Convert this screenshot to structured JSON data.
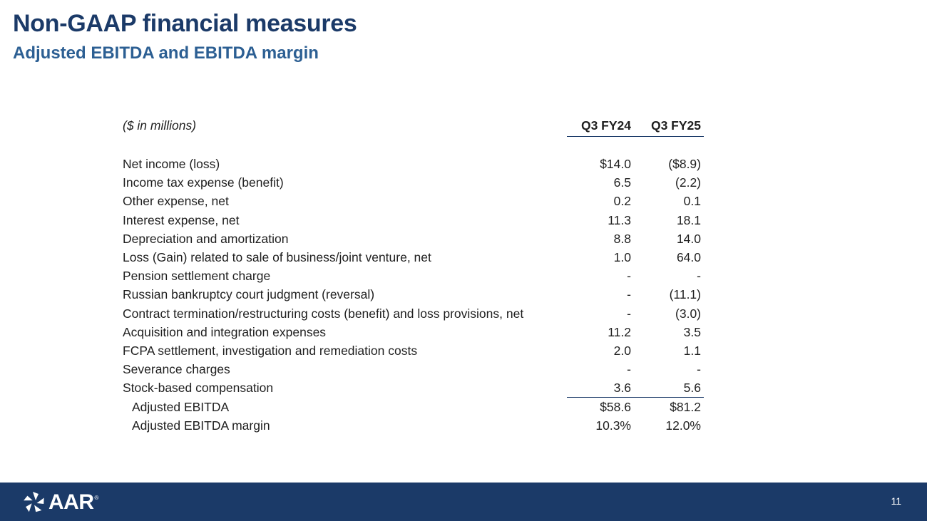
{
  "slide": {
    "title": "Non-GAAP financial measures",
    "subtitle": "Adjusted EBITDA and EBITDA margin",
    "page_number": "11"
  },
  "table": {
    "header": {
      "label": "($ in millions)",
      "col1": "Q3 FY24",
      "col2": "Q3 FY25"
    },
    "rows": [
      {
        "label": "Net income (loss)",
        "q3fy24": "$14.0",
        "q3fy25": "($8.9)"
      },
      {
        "label": "Income tax expense (benefit)",
        "q3fy24": "6.5",
        "q3fy25": "(2.2)"
      },
      {
        "label": "Other expense, net",
        "q3fy24": "0.2",
        "q3fy25": "0.1"
      },
      {
        "label": "Interest expense, net",
        "q3fy24": "11.3",
        "q3fy25": "18.1"
      },
      {
        "label": "Depreciation and amortization",
        "q3fy24": "8.8",
        "q3fy25": "14.0"
      },
      {
        "label": "Loss (Gain) related to sale of business/joint venture, net",
        "q3fy24": "1.0",
        "q3fy25": "64.0"
      },
      {
        "label": "Pension settlement charge",
        "q3fy24": "-",
        "q3fy25": "-"
      },
      {
        "label": "Russian bankruptcy court judgment (reversal)",
        "q3fy24": "-",
        "q3fy25": "(11.1)"
      },
      {
        "label": "Contract termination/restructuring costs (benefit) and loss provisions, net",
        "q3fy24": "-",
        "q3fy25": "(3.0)"
      },
      {
        "label": "Acquisition and integration expenses",
        "q3fy24": "11.2",
        "q3fy25": "3.5"
      },
      {
        "label": "FCPA settlement, investigation and remediation costs",
        "q3fy24": "2.0",
        "q3fy25": "1.1"
      },
      {
        "label": "Severance charges",
        "q3fy24": "-",
        "q3fy25": "-"
      },
      {
        "label": "Stock-based compensation",
        "q3fy24": "3.6",
        "q3fy25": "5.6"
      }
    ],
    "totals": [
      {
        "label": "Adjusted EBITDA",
        "q3fy24": "$58.6",
        "q3fy25": "$81.2"
      },
      {
        "label": "Adjusted EBITDA margin",
        "q3fy24": "10.3%",
        "q3fy25": "12.0%"
      }
    ]
  },
  "footer": {
    "logo_text": "AAR",
    "logo_mark": "aar-star-logo-icon",
    "logo_trademark": "®",
    "background_color": "#1b3a68"
  }
}
